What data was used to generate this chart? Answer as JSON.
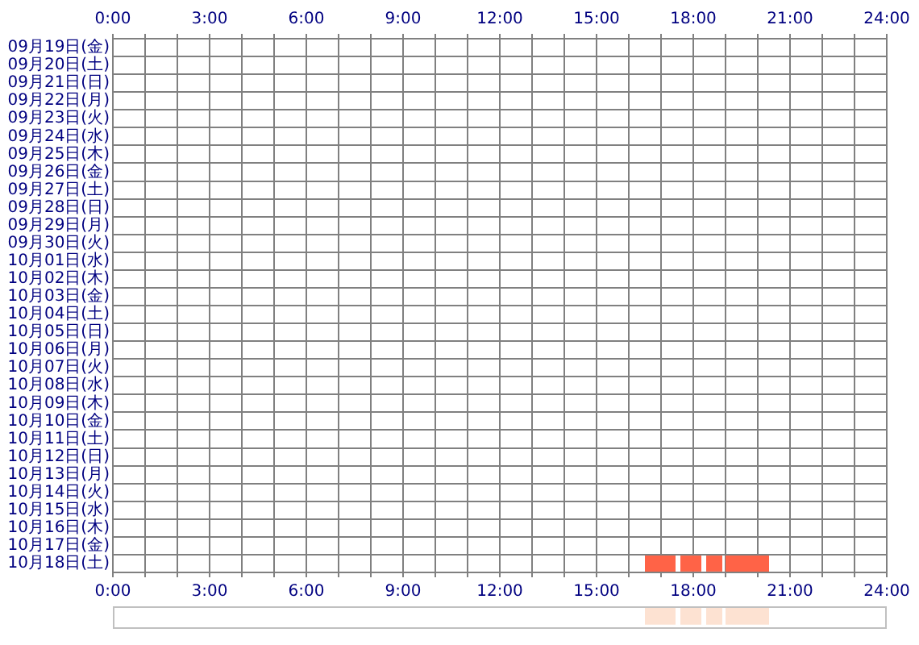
{
  "chart_data": [
    {
      "type": "bar",
      "orientation": "horizontal",
      "categories": [
        "09月19日(金)",
        "09月20日(土)",
        "09月21日(日)",
        "09月22日(月)",
        "09月23日(火)",
        "09月24日(水)",
        "09月25日(木)",
        "09月26日(金)",
        "09月27日(土)",
        "09月28日(日)",
        "09月29日(月)",
        "09月30日(火)",
        "10月01日(水)",
        "10月02日(木)",
        "10月03日(金)",
        "10月04日(土)",
        "10月05日(日)",
        "10月06日(月)",
        "10月07日(火)",
        "10月08日(水)",
        "10月09日(木)",
        "10月10日(金)",
        "10月11日(土)",
        "10月12日(日)",
        "10月13日(月)",
        "10月14日(火)",
        "10月15日(水)",
        "10月16日(木)",
        "10月17日(金)",
        "10月18日(土)"
      ],
      "series": [
        {
          "color": "#ff6347",
          "values": [
            null,
            null,
            null,
            null,
            null,
            null,
            null,
            null,
            null,
            null,
            null,
            null,
            null,
            null,
            null,
            null,
            null,
            null,
            null,
            null,
            null,
            null,
            null,
            null,
            null,
            null,
            null,
            null,
            null,
            0.95
          ],
          "base": [
            null,
            null,
            null,
            null,
            null,
            null,
            null,
            null,
            null,
            null,
            null,
            null,
            null,
            null,
            null,
            null,
            null,
            null,
            null,
            null,
            null,
            null,
            null,
            null,
            null,
            null,
            null,
            null,
            null,
            16.5
          ]
        },
        {
          "color": "#ff6347",
          "values": [
            null,
            null,
            null,
            null,
            null,
            null,
            null,
            null,
            null,
            null,
            null,
            null,
            null,
            null,
            null,
            null,
            null,
            null,
            null,
            null,
            null,
            null,
            null,
            null,
            null,
            null,
            null,
            null,
            null,
            0.65
          ],
          "base": [
            null,
            null,
            null,
            null,
            null,
            null,
            null,
            null,
            null,
            null,
            null,
            null,
            null,
            null,
            null,
            null,
            null,
            null,
            null,
            null,
            null,
            null,
            null,
            null,
            null,
            null,
            null,
            null,
            null,
            17.6
          ]
        },
        {
          "color": "#ff6347",
          "values": [
            null,
            null,
            null,
            null,
            null,
            null,
            null,
            null,
            null,
            null,
            null,
            null,
            null,
            null,
            null,
            null,
            null,
            null,
            null,
            null,
            null,
            null,
            null,
            null,
            null,
            null,
            null,
            null,
            null,
            0.5
          ],
          "base": [
            null,
            null,
            null,
            null,
            null,
            null,
            null,
            null,
            null,
            null,
            null,
            null,
            null,
            null,
            null,
            null,
            null,
            null,
            null,
            null,
            null,
            null,
            null,
            null,
            null,
            null,
            null,
            null,
            null,
            18.4
          ]
        },
        {
          "color": "#ff6347",
          "values": [
            null,
            null,
            null,
            null,
            null,
            null,
            null,
            null,
            null,
            null,
            null,
            null,
            null,
            null,
            null,
            null,
            null,
            null,
            null,
            null,
            null,
            null,
            null,
            null,
            null,
            null,
            null,
            null,
            null,
            1.35
          ],
          "base": [
            null,
            null,
            null,
            null,
            null,
            null,
            null,
            null,
            null,
            null,
            null,
            null,
            null,
            null,
            null,
            null,
            null,
            null,
            null,
            null,
            null,
            null,
            null,
            null,
            null,
            null,
            null,
            null,
            null,
            19.0
          ]
        }
      ],
      "xlim": [
        0,
        24
      ],
      "xticks": [
        {
          "value": 0,
          "label": "0:00"
        },
        {
          "value": 1,
          "label": null
        },
        {
          "value": 2,
          "label": null
        },
        {
          "value": 3,
          "label": "3:00"
        },
        {
          "value": 4,
          "label": null
        },
        {
          "value": 5,
          "label": null
        },
        {
          "value": 6,
          "label": "6:00"
        },
        {
          "value": 7,
          "label": null
        },
        {
          "value": 8,
          "label": null
        },
        {
          "value": 9,
          "label": "9:00"
        },
        {
          "value": 10,
          "label": null
        },
        {
          "value": 11,
          "label": null
        },
        {
          "value": 12,
          "label": "12:00"
        },
        {
          "value": 13,
          "label": null
        },
        {
          "value": 14,
          "label": null
        },
        {
          "value": 15,
          "label": "15:00"
        },
        {
          "value": 16,
          "label": null
        },
        {
          "value": 17,
          "label": null
        },
        {
          "value": 18,
          "label": "18:00"
        },
        {
          "value": 19,
          "label": null
        },
        {
          "value": 20,
          "label": null
        },
        {
          "value": 21,
          "label": "21:00"
        },
        {
          "value": 22,
          "label": null
        },
        {
          "value": 23,
          "label": null
        },
        {
          "value": 24,
          "label": "24:00"
        }
      ],
      "x2lim": [
        0,
        24
      ],
      "x2ticks": [
        {
          "value": 0,
          "label": "0:00"
        },
        {
          "value": 1,
          "label": null
        },
        {
          "value": 2,
          "label": null
        },
        {
          "value": 3,
          "label": "3:00"
        },
        {
          "value": 4,
          "label": null
        },
        {
          "value": 5,
          "label": null
        },
        {
          "value": 6,
          "label": "6:00"
        },
        {
          "value": 7,
          "label": null
        },
        {
          "value": 8,
          "label": null
        },
        {
          "value": 9,
          "label": "9:00"
        },
        {
          "value": 10,
          "label": null
        },
        {
          "value": 11,
          "label": null
        },
        {
          "value": 12,
          "label": "12:00"
        },
        {
          "value": 13,
          "label": null
        },
        {
          "value": 14,
          "label": null
        },
        {
          "value": 15,
          "label": "15:00"
        },
        {
          "value": 16,
          "label": null
        },
        {
          "value": 17,
          "label": null
        },
        {
          "value": 18,
          "label": "18:00"
        },
        {
          "value": 19,
          "label": null
        },
        {
          "value": 20,
          "label": null
        },
        {
          "value": 21,
          "label": "21:00"
        },
        {
          "value": 22,
          "label": null
        },
        {
          "value": 23,
          "label": null
        },
        {
          "value": 24,
          "label": "24:00"
        }
      ],
      "grid": true
    },
    {
      "type": "bar",
      "orientation": "horizontal",
      "categories": [
        null
      ],
      "series": [
        {
          "color": "#fde2d2",
          "values": [
            0.95
          ],
          "base": [
            16.5
          ]
        },
        {
          "color": "#fde2d2",
          "values": [
            0.65
          ],
          "base": [
            17.6
          ]
        },
        {
          "color": "#fde2d2",
          "values": [
            0.5
          ],
          "base": [
            18.4
          ]
        },
        {
          "color": "#fde2d2",
          "values": [
            1.35
          ],
          "base": [
            19.0
          ]
        }
      ],
      "xlim": [
        0,
        24
      ],
      "tick_labels": false
    }
  ]
}
